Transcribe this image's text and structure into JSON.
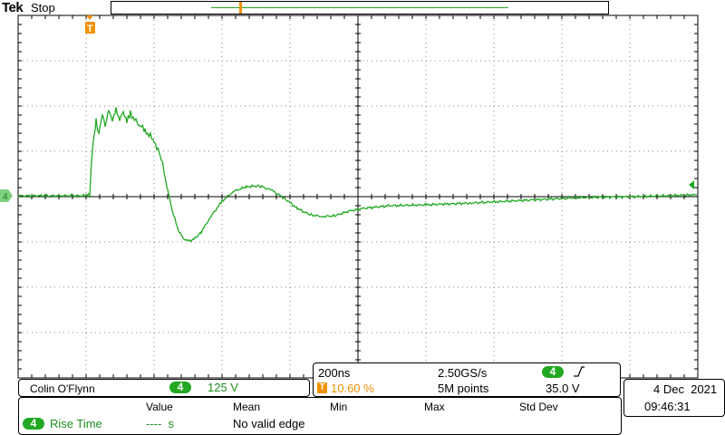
{
  "header": {
    "brand": "Tek",
    "status": "Stop"
  },
  "channel": {
    "number": "4",
    "scale": "125 V",
    "color": "#22a822"
  },
  "trigger": {
    "marker": "T",
    "position": "10.60 %",
    "level": "35.0 V",
    "slope_icon": "rising-edge-icon",
    "color": "#f09000"
  },
  "acquisition": {
    "timebase": "200ns",
    "sample_rate": "2.50GS/s",
    "record_length": "5M points"
  },
  "label": "Colin O'Flynn",
  "datetime": {
    "date": "4 Dec  2021",
    "time": "09:46:31"
  },
  "measurements": {
    "headers": [
      "Value",
      "Mean",
      "Min",
      "Max",
      "Std Dev"
    ],
    "rows": [
      {
        "channel": "4",
        "name": "Rise Time",
        "value": "----  s",
        "note": "No valid edge"
      }
    ]
  }
}
